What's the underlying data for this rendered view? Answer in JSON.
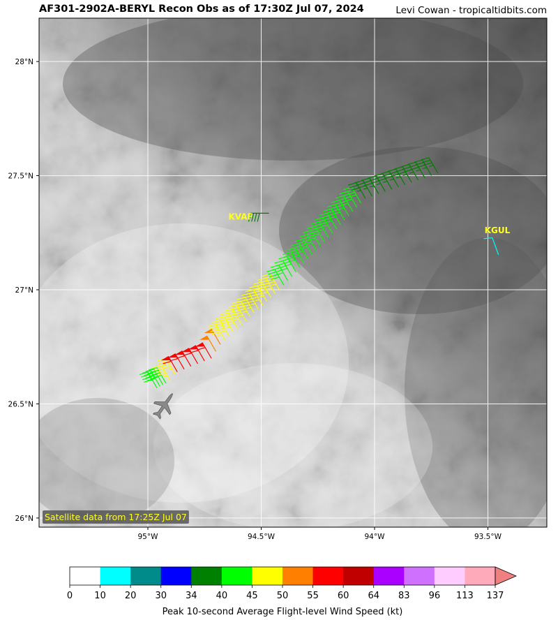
{
  "title": {
    "main": "AF301-2902A-BERYL Recon Obs as of 17:30Z Jul 07, 2024",
    "credit": "Levi Cowan - tropicaltidbits.com"
  },
  "map": {
    "lon_ticks": [
      {
        "lon": -95.0,
        "label": "95°W"
      },
      {
        "lon": -94.5,
        "label": "94.5°W"
      },
      {
        "lon": -94.0,
        "label": "94°W"
      },
      {
        "lon": -93.5,
        "label": "93.5°W"
      }
    ],
    "lat_ticks": [
      {
        "lat": 28.0,
        "label": "28°N"
      },
      {
        "lat": 27.5,
        "label": "27.5°N"
      },
      {
        "lat": 27.0,
        "label": "27°N"
      },
      {
        "lat": 26.5,
        "label": "26.5°N"
      },
      {
        "lat": 26.0,
        "label": "26°N"
      }
    ],
    "extent": {
      "lon_min": -95.48,
      "lon_max": -93.24,
      "lat_min": 25.96,
      "lat_max": 28.19
    },
    "satellite_label": "Satellite data from 17:25Z Jul 07",
    "stations": [
      {
        "id": "KVAF",
        "label": "KVAF",
        "lon": -94.62,
        "lat": 27.32,
        "speed": 40,
        "color": "#008000"
      },
      {
        "id": "KGUL",
        "label": "KGUL",
        "lon": -93.49,
        "lat": 27.26,
        "speed": 12,
        "color": "#00ffff"
      }
    ],
    "aircraft": {
      "icon": "aircraft-icon",
      "lon": -94.93,
      "lat": 26.49
    }
  },
  "colorbar": {
    "title": "Peak 10-second Average Flight-level Wind Speed (kt)",
    "bounds": [
      "0",
      "10",
      "20",
      "30",
      "34",
      "40",
      "45",
      "50",
      "55",
      "60",
      "64",
      "83",
      "96",
      "113",
      "137"
    ],
    "colors": [
      "#ffffff",
      "#00ffff",
      "#008b8b",
      "#0000ff",
      "#008000",
      "#00ff00",
      "#ffff00",
      "#ff7f00",
      "#ff0000",
      "#c00000",
      "#aa00ff",
      "#d070ff",
      "#ffccff",
      "#ffaabb"
    ],
    "extend_color": "#f08080"
  },
  "observations": {
    "segments": [
      {
        "from": [
          -94.96,
          26.57
        ],
        "to": [
          -94.92,
          26.59
        ],
        "speed": 42,
        "count": 4
      },
      {
        "from": [
          -94.9,
          26.6
        ],
        "to": [
          -94.88,
          26.63
        ],
        "speed": 47,
        "count": 2
      },
      {
        "from": [
          -94.87,
          26.64
        ],
        "to": [
          -94.72,
          26.7
        ],
        "speed": 58,
        "count": 6
      },
      {
        "from": [
          -94.7,
          26.73
        ],
        "to": [
          -94.68,
          26.76
        ],
        "speed": 52,
        "count": 2
      },
      {
        "from": [
          -94.66,
          26.78
        ],
        "to": [
          -94.42,
          27.0
        ],
        "speed": 47,
        "count": 14
      },
      {
        "from": [
          -94.4,
          27.02
        ],
        "to": [
          -94.06,
          27.38
        ],
        "speed": 42,
        "count": 20
      },
      {
        "from": [
          -94.04,
          27.4
        ],
        "to": [
          -93.72,
          27.51
        ],
        "speed": 36,
        "count": 12
      }
    ]
  }
}
